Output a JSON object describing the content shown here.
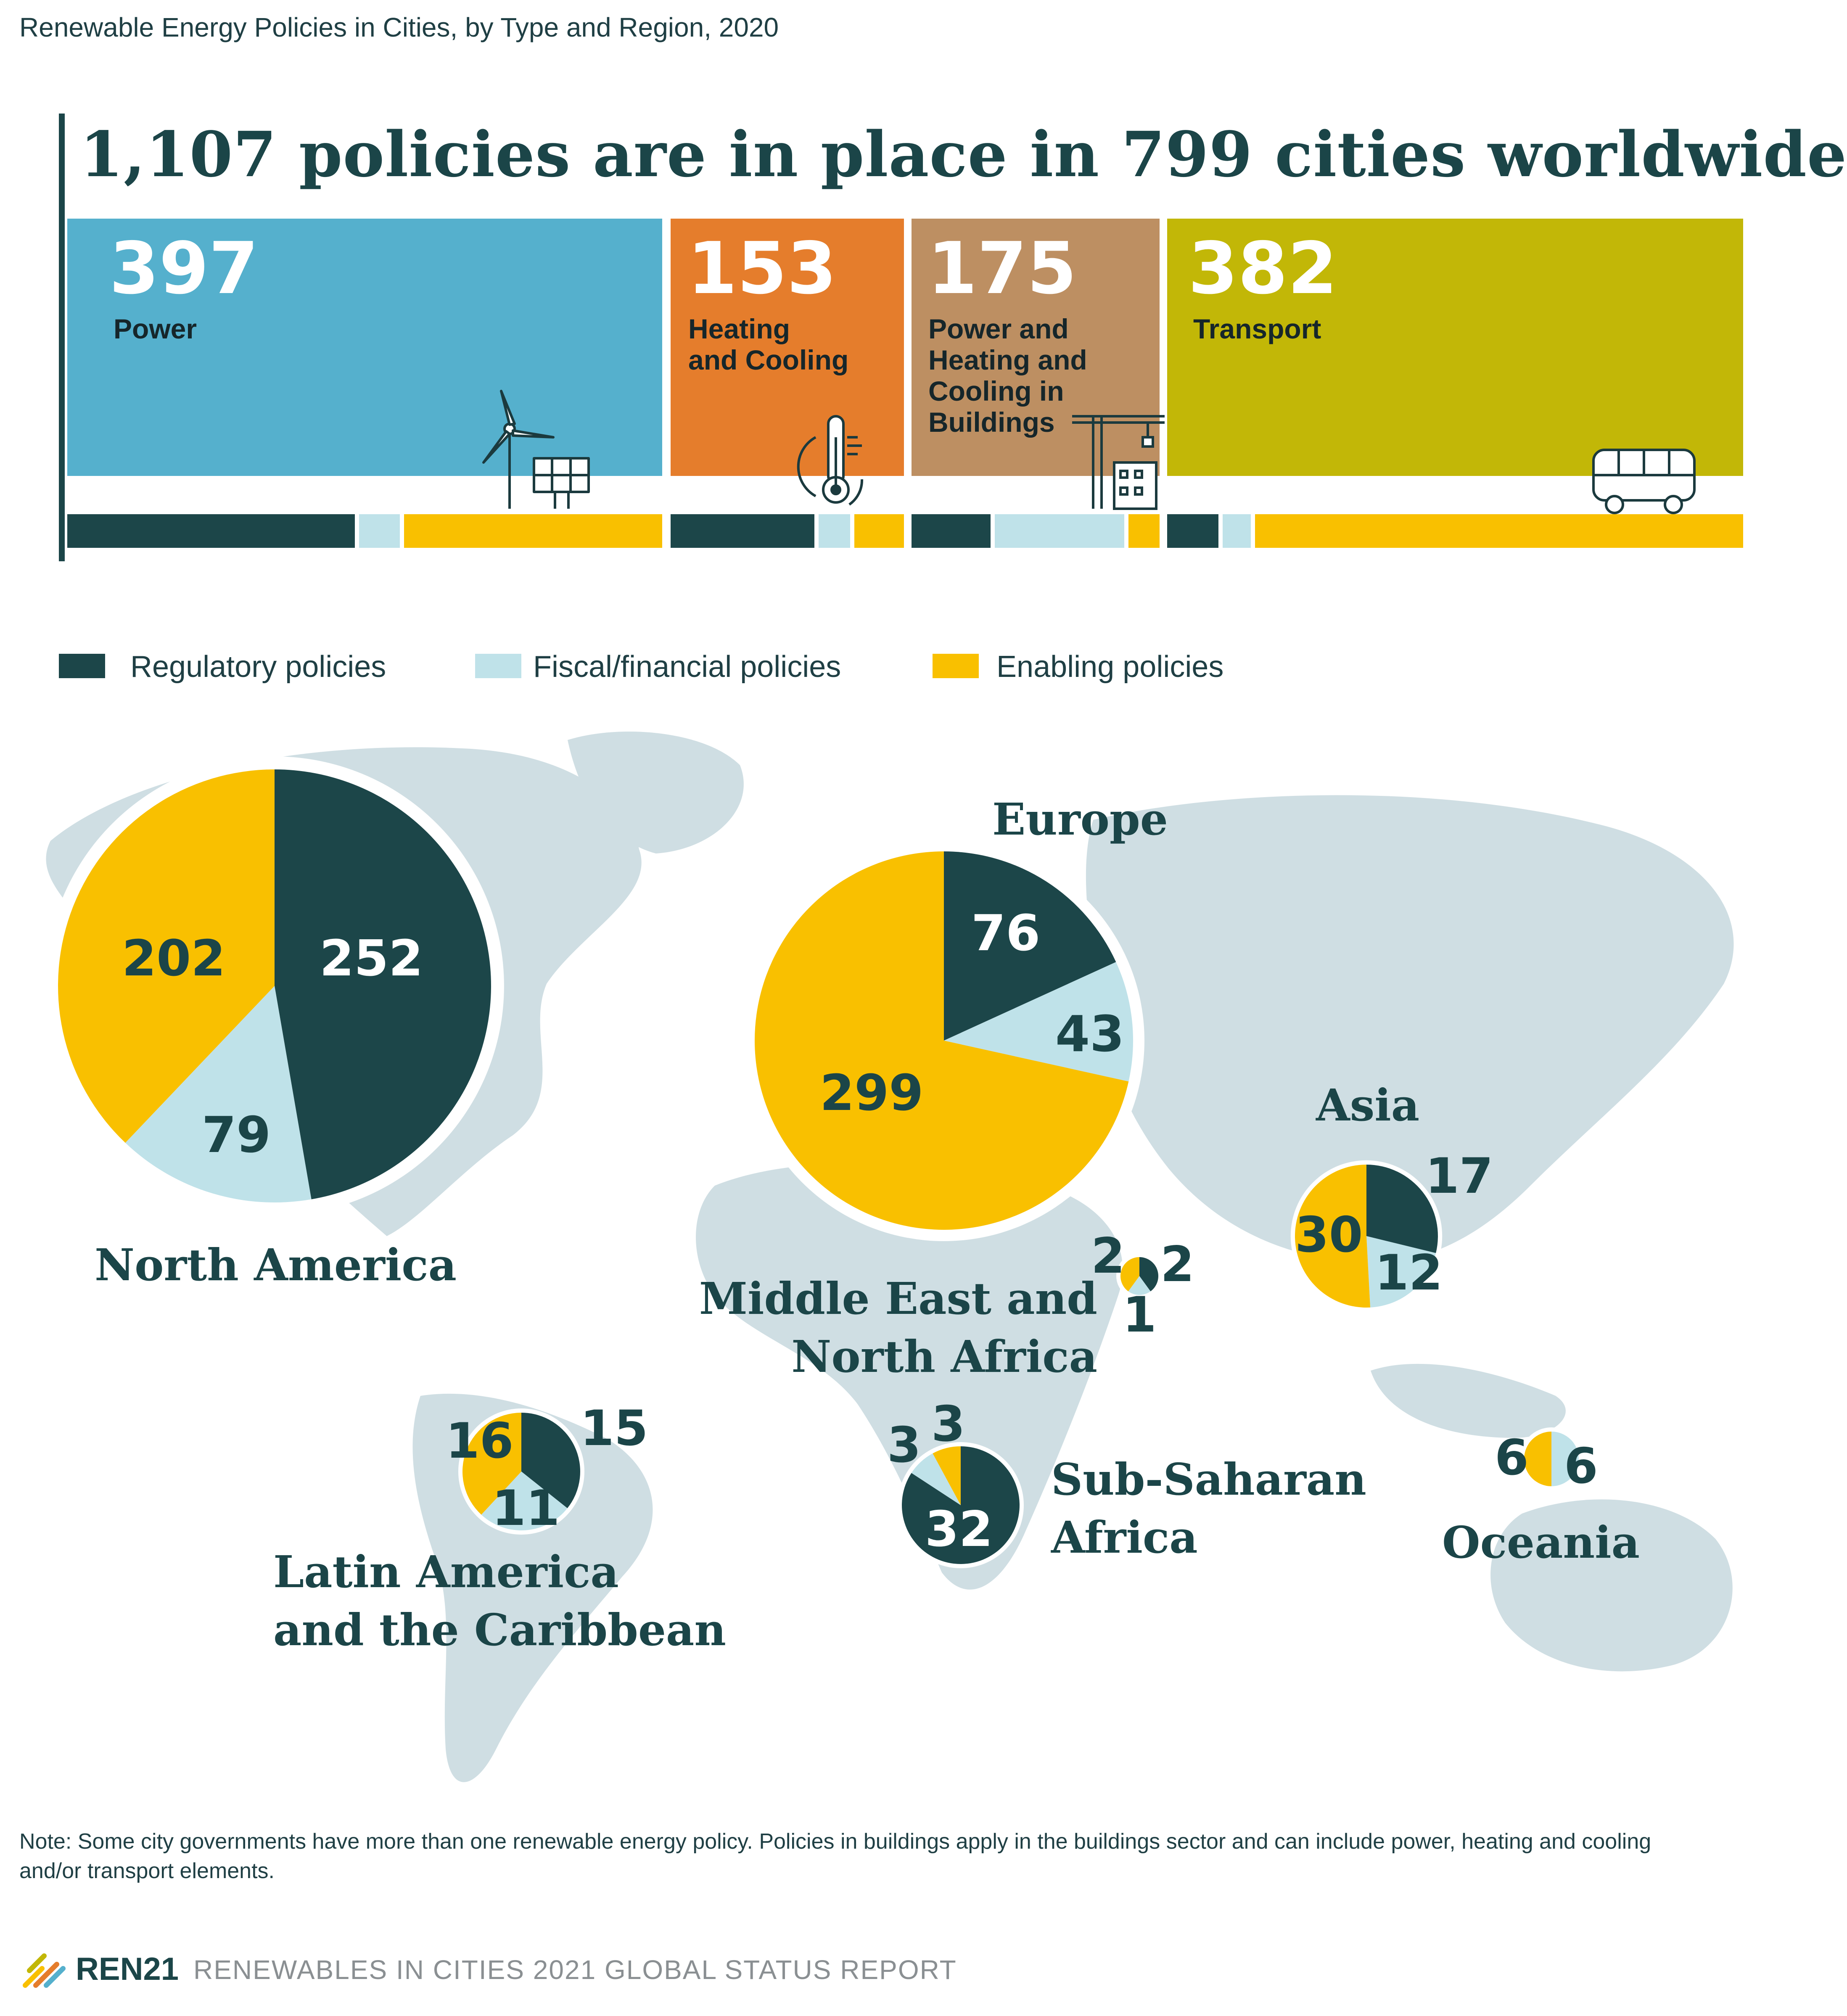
{
  "caption": "Renewable Energy Policies in Cities, by Type and Region, 2020",
  "headline": "1,107 policies are in place in 799 cities worldwide",
  "colors": {
    "regulatory": "#1c4649",
    "fiscal": "#bfe2e9",
    "enabling": "#f9c000",
    "power": "#55b0cd",
    "heating": "#e57d2c",
    "buildings": "#bd8f62",
    "transport": "#c2b707",
    "map": "#cfdee3",
    "dark_text": "#1b4548"
  },
  "legend": [
    {
      "label": "Regulatory policies"
    },
    {
      "label": "Fiscal/financial policies"
    },
    {
      "label": "Enabling policies"
    }
  ],
  "sectors": [
    {
      "value": "397",
      "label": "Power",
      "icon": "wind-solar-icon"
    },
    {
      "value": "153",
      "label": "Heating\nand Cooling",
      "icon": "thermometer-icon"
    },
    {
      "value": "175",
      "label": "Power and\nHeating and\nCooling in\nBuildings",
      "icon": "crane-building-icon"
    },
    {
      "value": "382",
      "label": "Transport",
      "icon": "bus-icon"
    }
  ],
  "regions": [
    {
      "name": "North America",
      "label": "North America"
    },
    {
      "name": "Europe",
      "label": "Europe"
    },
    {
      "name": "Asia",
      "label": "Asia"
    },
    {
      "name": "Middle East and North Africa",
      "label": "Middle East and\nNorth Africa"
    },
    {
      "name": "Latin America and the Caribbean",
      "label": "Latin America\nand the Caribbean"
    },
    {
      "name": "Sub-Saharan Africa",
      "label": "Sub-Saharan\nAfrica"
    },
    {
      "name": "Oceania",
      "label": "Oceania"
    }
  ],
  "chart_data": {
    "type": "pie",
    "categories": [
      "Regulatory policies",
      "Fiscal/financial policies",
      "Enabling policies"
    ],
    "sectors": [
      {
        "name": "Power",
        "total": 397
      },
      {
        "name": "Heating and Cooling",
        "total": 153
      },
      {
        "name": "Power and Heating and Cooling in Buildings",
        "total": 175
      },
      {
        "name": "Transport",
        "total": 382
      }
    ],
    "sector_breakdown_fractions": [
      {
        "name": "Power",
        "regulatory": 0.49,
        "fiscal": 0.07,
        "enabling": 0.44
      },
      {
        "name": "Heating and Cooling",
        "regulatory": 0.64,
        "fiscal": 0.14,
        "enabling": 0.22
      },
      {
        "name": "Power and Heating and Cooling in Buildings",
        "regulatory": 0.33,
        "fiscal": 0.54,
        "enabling": 0.13
      },
      {
        "name": "Transport",
        "regulatory": 0.09,
        "fiscal": 0.05,
        "enabling": 0.86
      }
    ],
    "series": [
      {
        "name": "North America",
        "values": [
          252,
          79,
          202
        ]
      },
      {
        "name": "Europe",
        "values": [
          76,
          43,
          299
        ]
      },
      {
        "name": "Asia",
        "values": [
          17,
          12,
          30
        ]
      },
      {
        "name": "Middle East and North Africa",
        "values": [
          2,
          1,
          2
        ]
      },
      {
        "name": "Latin America and the Caribbean",
        "values": [
          15,
          11,
          16
        ]
      },
      {
        "name": "Sub-Saharan Africa",
        "values": [
          32,
          3,
          3
        ]
      },
      {
        "name": "Oceania",
        "values": [
          0,
          6,
          6
        ]
      }
    ]
  },
  "note": "Note: Some city governments have more than one renewable energy policy. Policies in buildings apply in the buildings sector and can include power, heating and cooling and/or transport elements.",
  "footer": {
    "logo": "REN21",
    "report": "RENEWABLES IN CITIES 2021 GLOBAL STATUS REPORT"
  }
}
